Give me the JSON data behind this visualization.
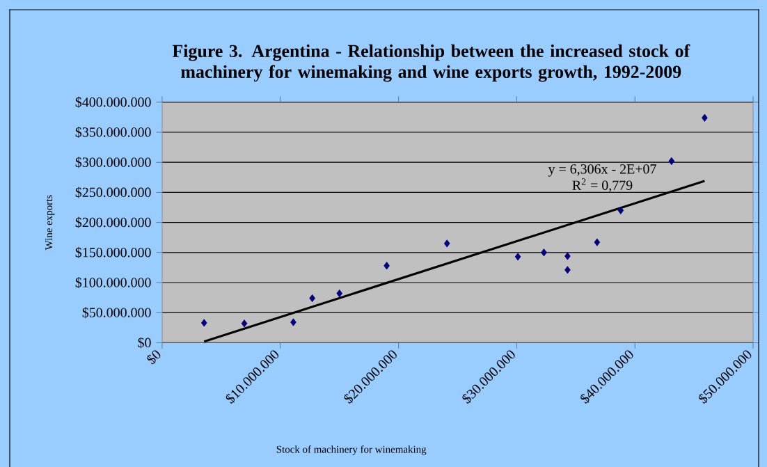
{
  "chart_data": {
    "type": "scatter",
    "title": "Figure 3. Argentina - Relationship between the increased stock of machinery for winemaking and wine exports growth, 1992-2009",
    "xlabel": "Stock of machinery for winemaking",
    "ylabel": "Wine exports",
    "xlim": [
      0,
      50000000
    ],
    "ylim": [
      0,
      400000000
    ],
    "xticks": [
      {
        "value": 0,
        "label": "$0"
      },
      {
        "value": 10000000,
        "label": "$10.000.000"
      },
      {
        "value": 20000000,
        "label": "$20.000.000"
      },
      {
        "value": 30000000,
        "label": "$30.000.000"
      },
      {
        "value": 40000000,
        "label": "$40.000.000"
      },
      {
        "value": 50000000,
        "label": "$50.000.000"
      }
    ],
    "yticks": [
      {
        "value": 0,
        "label": "$0"
      },
      {
        "value": 50000000,
        "label": "$50.000.000"
      },
      {
        "value": 100000000,
        "label": "$100.000.000"
      },
      {
        "value": 150000000,
        "label": "$150.000.000"
      },
      {
        "value": 200000000,
        "label": "$200.000.000"
      },
      {
        "value": 250000000,
        "label": "$250.000.000"
      },
      {
        "value": 300000000,
        "label": "$300.000.000"
      },
      {
        "value": 350000000,
        "label": "$350.000.000"
      },
      {
        "value": 400000000,
        "label": "$400.000.000"
      }
    ],
    "grid": "y",
    "marker": "diamond",
    "series": [
      {
        "type": "scatter",
        "color": "#000080",
        "x": [
          3550000,
          6950000,
          11100000,
          12700000,
          15000000,
          19000000,
          24100000,
          30100000,
          32300000,
          34300000,
          34300000,
          36800000,
          38800000,
          43100000,
          45900000
        ],
        "values": [
          33000000,
          32000000,
          34000000,
          74000000,
          82000000,
          128000000,
          165000000,
          143000000,
          150000000,
          144000000,
          121000000,
          167000000,
          220000000,
          302000000,
          374000000
        ]
      },
      {
        "type": "line",
        "marker": "none",
        "color": "#000000",
        "x": [
          3550000,
          45900000
        ],
        "values": [
          2000000,
          269000000
        ]
      }
    ],
    "annotations": [
      "y = 6,306x - 2E+07",
      "R$^{2}$ = 0,779"
    ]
  }
}
